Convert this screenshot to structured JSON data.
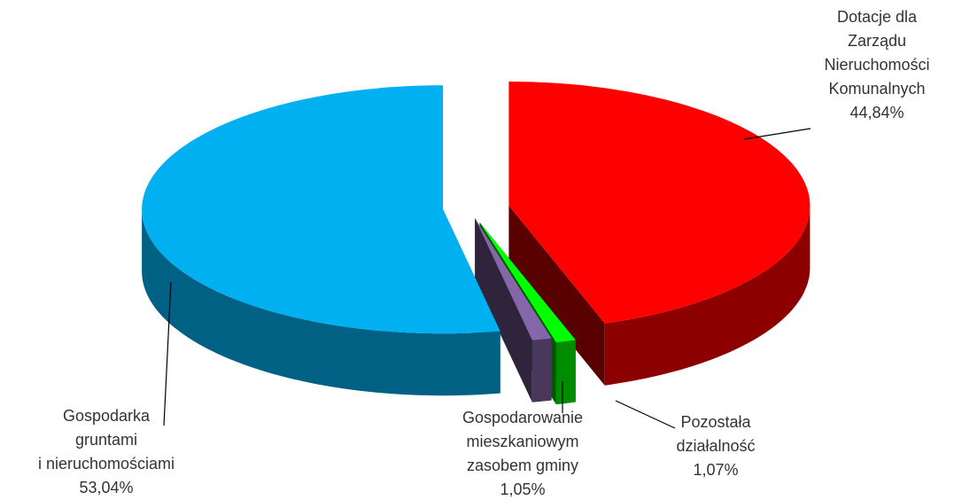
{
  "chart_data": {
    "type": "pie",
    "categories": [
      [
        "Dotacje dla",
        "Zarządu",
        "Nieruchomości",
        "Komunalnych"
      ],
      [
        "Pozostała",
        "działalność"
      ],
      [
        "Gospodarowanie",
        "mieszkaniowym",
        "zasobem gminy"
      ],
      [
        "Gospodarka",
        "gruntami",
        "i nieruchomościami"
      ]
    ],
    "values": [
      44.84,
      1.07,
      1.05,
      53.04
    ],
    "value_labels": [
      "44,84%",
      "1,07%",
      "1,05%",
      "53,04%"
    ],
    "colors": [
      "#ff0000",
      "#00ff00",
      "#8566a8",
      "#00b0f0"
    ]
  }
}
